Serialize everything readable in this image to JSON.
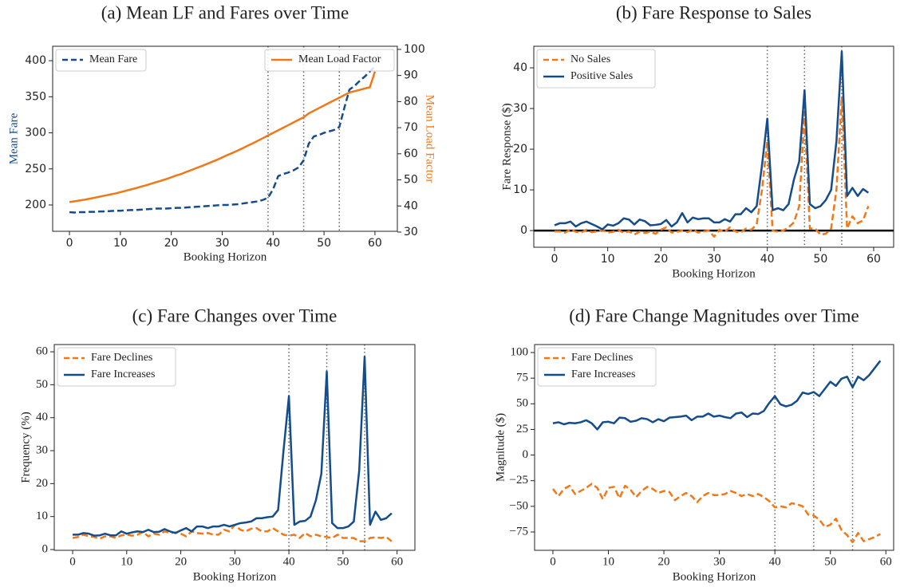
{
  "chart_data": [
    {
      "type": "line",
      "title": "(a) Mean LF and Fares over Time",
      "xlabel": "Booking Horizon",
      "ylabel": "Mean Fare",
      "y2label": "Mean Load Factor",
      "x": [
        0,
        1,
        2,
        3,
        4,
        5,
        6,
        7,
        8,
        9,
        10,
        11,
        12,
        13,
        14,
        15,
        16,
        17,
        18,
        19,
        20,
        21,
        22,
        23,
        24,
        25,
        26,
        27,
        28,
        29,
        30,
        31,
        32,
        33,
        34,
        35,
        36,
        37,
        38,
        39,
        40,
        41,
        42,
        43,
        44,
        45,
        46,
        47,
        48,
        49,
        50,
        51,
        52,
        53,
        54,
        55,
        56,
        57,
        58,
        59,
        60
      ],
      "series": [
        {
          "name": "Mean Fare",
          "color": "#144c8c",
          "style": "dashed",
          "axis": "y",
          "values": [
            190,
            189.5,
            190,
            190,
            190.5,
            190.5,
            191,
            191,
            191.5,
            192,
            192,
            192.5,
            193,
            193,
            193.5,
            194,
            194.5,
            195,
            195,
            195,
            195.5,
            196,
            196,
            196.5,
            197,
            197.5,
            198,
            198.5,
            199,
            199.5,
            200,
            200,
            200.5,
            201,
            202,
            203,
            204,
            205,
            207,
            210,
            222,
            240,
            243,
            245,
            248,
            252,
            262,
            285,
            295,
            297,
            300,
            302,
            304,
            308,
            335,
            360,
            365,
            372,
            378,
            385,
            392
          ]
        },
        {
          "name": "Mean Load Factor",
          "color": "#f07818",
          "style": "solid",
          "axis": "y2",
          "values": [
            41.5,
            41.8,
            42.1,
            42.4,
            42.8,
            43.2,
            43.6,
            44.0,
            44.4,
            44.8,
            45.3,
            45.8,
            46.3,
            46.8,
            47.4,
            47.9,
            48.5,
            49.1,
            49.7,
            50.3,
            51.0,
            51.7,
            52.3,
            53.1,
            53.8,
            54.6,
            55.3,
            56.1,
            56.9,
            57.7,
            58.6,
            59.5,
            60.3,
            61.2,
            62.1,
            63.1,
            64.0,
            65.0,
            66.0,
            67.0,
            68.0,
            69.0,
            70.0,
            71.0,
            72.0,
            73.0,
            74.0,
            75.5,
            76.5,
            77.5,
            78.5,
            79.5,
            80.5,
            81.5,
            82.5,
            83.5,
            84.0,
            84.5,
            85.0,
            85.5,
            91.5
          ]
        }
      ],
      "xlim": [
        -3.3,
        64.4
      ],
      "ylim": [
        163.5,
        420
      ],
      "y2lim": [
        30.3,
        101.2
      ],
      "xticks": [
        0,
        10,
        20,
        30,
        40,
        50,
        60
      ],
      "yticks": [
        200,
        250,
        300,
        350,
        400
      ],
      "y2ticks": [
        30,
        40,
        50,
        60,
        70,
        80,
        90,
        100
      ],
      "vlines": [
        39,
        46,
        53
      ],
      "legend": "upper left",
      "y2legend": "upper right"
    },
    {
      "type": "line",
      "title": "(b) Fare Response to Sales",
      "xlabel": "Booking Horizon",
      "ylabel": "Fare Response ($)",
      "x": [
        0,
        1,
        2,
        3,
        4,
        5,
        6,
        7,
        8,
        9,
        10,
        11,
        12,
        13,
        14,
        15,
        16,
        17,
        18,
        19,
        20,
        21,
        22,
        23,
        24,
        25,
        26,
        27,
        28,
        29,
        30,
        31,
        32,
        33,
        34,
        35,
        36,
        37,
        38,
        39,
        40,
        41,
        42,
        43,
        44,
        45,
        46,
        47,
        48,
        49,
        50,
        51,
        52,
        53,
        54,
        55,
        56,
        57,
        58,
        59
      ],
      "series": [
        {
          "name": "No Sales",
          "color": "#f07818",
          "style": "dashed",
          "values": [
            -0.2,
            -0.2,
            -0.5,
            0.3,
            -0.3,
            -0.5,
            0.2,
            -0.4,
            -0.2,
            0.1,
            -0.5,
            -0.3,
            0.2,
            -0.6,
            -0.2,
            -1.0,
            -0.3,
            -0.6,
            -0.3,
            -0.8,
            0.2,
            0.8,
            -0.5,
            -0.3,
            0.0,
            -0.4,
            0.3,
            -0.5,
            -0.2,
            0.0,
            -1.5,
            0.2,
            -0.3,
            0.8,
            -0.2,
            -0.5,
            0.5,
            0.2,
            1.5,
            10,
            22,
            0.0,
            -0.3,
            0.0,
            0.8,
            2.0,
            6.0,
            29,
            0.5,
            0.5,
            -1.0,
            -0.8,
            0.5,
            10,
            33,
            0.5,
            3.5,
            1.8,
            2.5,
            6.0
          ]
        },
        {
          "name": "Positive Sales",
          "color": "#144c8c",
          "style": "solid",
          "values": [
            1.3,
            1.8,
            1.8,
            2.2,
            1.0,
            1.8,
            2.2,
            1.6,
            1.0,
            0.3,
            1.5,
            1.2,
            1.8,
            3.0,
            2.7,
            1.5,
            2.7,
            2.3,
            1.3,
            1.4,
            1.6,
            2.6,
            1.0,
            2.0,
            4.3,
            2.0,
            3.2,
            2.8,
            3.0,
            3.0,
            2.0,
            2.0,
            2.8,
            2.2,
            4.0,
            4.0,
            5.5,
            4.5,
            6.0,
            16,
            27.5,
            5.0,
            5.5,
            5.0,
            6.5,
            12.5,
            17,
            34.5,
            6.5,
            5.5,
            6.0,
            7.5,
            10,
            22,
            44,
            8.5,
            10.5,
            8.5,
            10.2,
            9.3
          ]
        }
      ],
      "xlim": [
        -3.9,
        63.75
      ],
      "ylim": [
        -4.1,
        45.3
      ],
      "xticks": [
        0,
        10,
        20,
        30,
        40,
        50,
        60
      ],
      "yticks": [
        0,
        10,
        20,
        30,
        40
      ],
      "vlines": [
        40,
        47,
        54
      ],
      "hline": 0,
      "legend": "upper left"
    },
    {
      "type": "line",
      "title": "(c) Fare Changes over Time",
      "xlabel": "Booking Horizon",
      "ylabel": "Frequency (%)",
      "x": [
        0,
        1,
        2,
        3,
        4,
        5,
        6,
        7,
        8,
        9,
        10,
        11,
        12,
        13,
        14,
        15,
        16,
        17,
        18,
        19,
        20,
        21,
        22,
        23,
        24,
        25,
        26,
        27,
        28,
        29,
        30,
        31,
        32,
        33,
        34,
        35,
        36,
        37,
        38,
        39,
        40,
        41,
        42,
        43,
        44,
        45,
        46,
        47,
        48,
        49,
        50,
        51,
        52,
        53,
        54,
        55,
        56,
        57,
        58,
        59
      ],
      "series": [
        {
          "name": "Fare Declines",
          "color": "#f07818",
          "style": "dashed",
          "values": [
            3.5,
            3.8,
            4.5,
            4,
            3.8,
            3.3,
            4,
            4,
            3.5,
            4.3,
            4.5,
            4.2,
            4.5,
            5.3,
            4,
            4.8,
            4.5,
            5.5,
            5,
            5.2,
            4.8,
            4,
            5.5,
            5,
            4.8,
            5,
            4.5,
            4.5,
            6,
            5.5,
            7.5,
            6,
            5.5,
            6.3,
            6.5,
            5.5,
            5.5,
            6.5,
            5.5,
            4.5,
            4.2,
            4.5,
            3.5,
            5,
            4,
            4.5,
            4,
            3.8,
            3.5,
            4.5,
            3.5,
            3.5,
            3.5,
            2.5,
            2.5,
            3.5,
            3.7,
            3.5,
            3.8,
            2.5
          ]
        },
        {
          "name": "Fare Increases",
          "color": "#144c8c",
          "style": "solid",
          "values": [
            4.5,
            4.5,
            5,
            4.8,
            4.2,
            4.3,
            4.8,
            4.3,
            4.3,
            5.5,
            4.8,
            5.2,
            5.5,
            5.3,
            6,
            5.3,
            5.4,
            6.2,
            5.5,
            5,
            5.8,
            6.5,
            5.5,
            7,
            7,
            6.5,
            7,
            7,
            7.5,
            7,
            7.5,
            8,
            8.2,
            8.5,
            9.5,
            9.5,
            9.8,
            10,
            12,
            30,
            46.5,
            7.5,
            8.5,
            8.7,
            10,
            15,
            23,
            54,
            8,
            6.5,
            6.5,
            7,
            8.5,
            24,
            58.5,
            7.5,
            11.5,
            9,
            9.5,
            11
          ]
        }
      ],
      "xlim": [
        -3.4,
        63.3
      ],
      "ylim": [
        -0.24,
        62.2
      ],
      "xticks": [
        0,
        10,
        20,
        30,
        40,
        50,
        60
      ],
      "yticks": [
        0,
        10,
        20,
        30,
        40,
        50,
        60
      ],
      "vlines": [
        40,
        47,
        54
      ],
      "legend": "upper left"
    },
    {
      "type": "line",
      "title": "(d) Fare Change Magnitudes over Time",
      "xlabel": "Booking Horizon",
      "ylabel": "Magnitude ($)",
      "x": [
        0,
        1,
        2,
        3,
        4,
        5,
        6,
        7,
        8,
        9,
        10,
        11,
        12,
        13,
        14,
        15,
        16,
        17,
        18,
        19,
        20,
        21,
        22,
        23,
        24,
        25,
        26,
        27,
        28,
        29,
        30,
        31,
        32,
        33,
        34,
        35,
        36,
        37,
        38,
        39,
        40,
        41,
        42,
        43,
        44,
        45,
        46,
        47,
        48,
        49,
        50,
        51,
        52,
        53,
        54,
        55,
        56,
        57,
        58,
        59
      ],
      "series": [
        {
          "name": "Fare Declines",
          "color": "#f07818",
          "style": "dashed",
          "values": [
            -33,
            -40,
            -33,
            -30,
            -38,
            -35,
            -32,
            -28,
            -32,
            -43,
            -32,
            -31,
            -42,
            -30,
            -34,
            -41,
            -35,
            -31,
            -33,
            -37,
            -35,
            -36,
            -44,
            -40,
            -37,
            -40,
            -46,
            -40,
            -37,
            -39,
            -39,
            -38,
            -35,
            -37,
            -40,
            -38,
            -40,
            -38,
            -41,
            -45,
            -51,
            -50,
            -51,
            -47,
            -48,
            -50,
            -58,
            -59,
            -63,
            -70,
            -68,
            -62,
            -73,
            -78,
            -85,
            -76,
            -84,
            -82,
            -80,
            -77
          ]
        },
        {
          "name": "Fare Increases",
          "color": "#144c8c",
          "style": "solid",
          "values": [
            31,
            32,
            30,
            31.5,
            31,
            32,
            34,
            31,
            25,
            32,
            32.5,
            31,
            36.5,
            36,
            32.5,
            33.5,
            36,
            35,
            32,
            35,
            33,
            36.5,
            37,
            37.5,
            38.5,
            34,
            37.5,
            37.5,
            40.5,
            37.5,
            38.5,
            37,
            36,
            40.5,
            41.5,
            37,
            40.5,
            40,
            43,
            51,
            57.5,
            49.5,
            47.5,
            49,
            53,
            61,
            59.5,
            61.5,
            57.5,
            64.5,
            71.5,
            67.5,
            74.5,
            76.5,
            66,
            76.5,
            73,
            78,
            85,
            92
          ]
        }
      ],
      "xlim": [
        -3.3,
        61.4
      ],
      "ylim": [
        -92.9,
        107.8
      ],
      "xticks": [
        0,
        10,
        20,
        30,
        40,
        50,
        60
      ],
      "yticks": [
        {
          "value": -75,
          "label": "−75"
        },
        {
          "value": -50,
          "label": "−50"
        },
        {
          "value": -25,
          "label": "−25"
        },
        0,
        25,
        50,
        75,
        100
      ],
      "vlines": [
        40,
        47,
        54
      ],
      "legend": "upper left"
    }
  ]
}
